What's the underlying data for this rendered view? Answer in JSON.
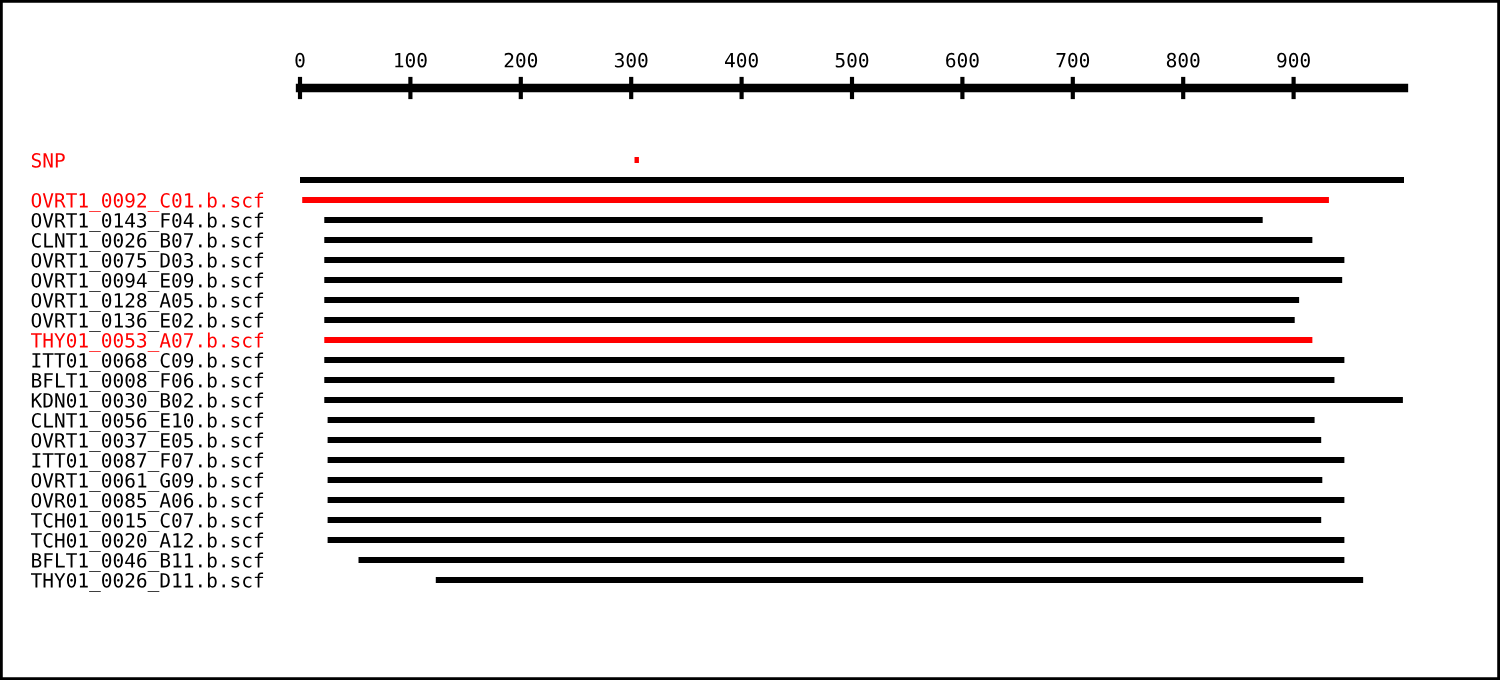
{
  "chart_data": {
    "type": "bar",
    "orientation": "horizontal",
    "categories": [
      "SNP",
      null,
      "OVRT1_0092_C01.b.scf",
      "OVRT1_0143_F04.b.scf",
      "CLNT1_0026_B07.b.scf",
      "OVRT1_0075_D03.b.scf",
      "OVRT1_0094_E09.b.scf",
      "OVRT1_0128_A05.b.scf",
      "OVRT1_0136_E02.b.scf",
      "THY01_0053_A07.b.scf",
      "ITT01_0068_C09.b.scf",
      "BFLT1_0008_F06.b.scf",
      "KDN01_0030_B02.b.scf",
      "CLNT1_0056_E10.b.scf",
      "OVRT1_0037_E05.b.scf",
      "ITT01_0087_F07.b.scf",
      "OVRT1_0061_G09.b.scf",
      "OVR01_0085_A06.b.scf",
      "TCH01_0015_C07.b.scf",
      "TCH01_0020_A12.b.scf",
      "BFLT1_0046_B11.b.scf",
      "THY01_0026_D11.b.scf"
    ],
    "base": [
      303,
      0,
      2,
      22,
      22,
      22,
      22,
      22,
      22,
      22,
      22,
      22,
      22,
      25,
      25,
      25,
      25,
      25,
      25,
      25,
      53,
      123
    ],
    "values": [
      4,
      1000,
      930,
      850,
      895,
      924,
      922,
      883,
      879,
      895,
      924,
      915,
      977,
      894,
      900,
      921,
      901,
      921,
      900,
      921,
      893,
      840
    ],
    "colors": [
      "#ff0000",
      "#000000",
      "#ff0000",
      "#000000",
      "#000000",
      "#000000",
      "#000000",
      "#000000",
      "#000000",
      "#ff0000",
      "#000000",
      "#000000",
      "#000000",
      "#000000",
      "#000000",
      "#000000",
      "#000000",
      "#000000",
      "#000000",
      "#000000",
      "#000000",
      "#000000"
    ],
    "xlim": [
      0,
      1000
    ],
    "xticks": [
      0,
      100,
      200,
      300,
      400,
      500,
      600,
      700,
      800,
      900
    ],
    "grid": false,
    "legend": false
  }
}
